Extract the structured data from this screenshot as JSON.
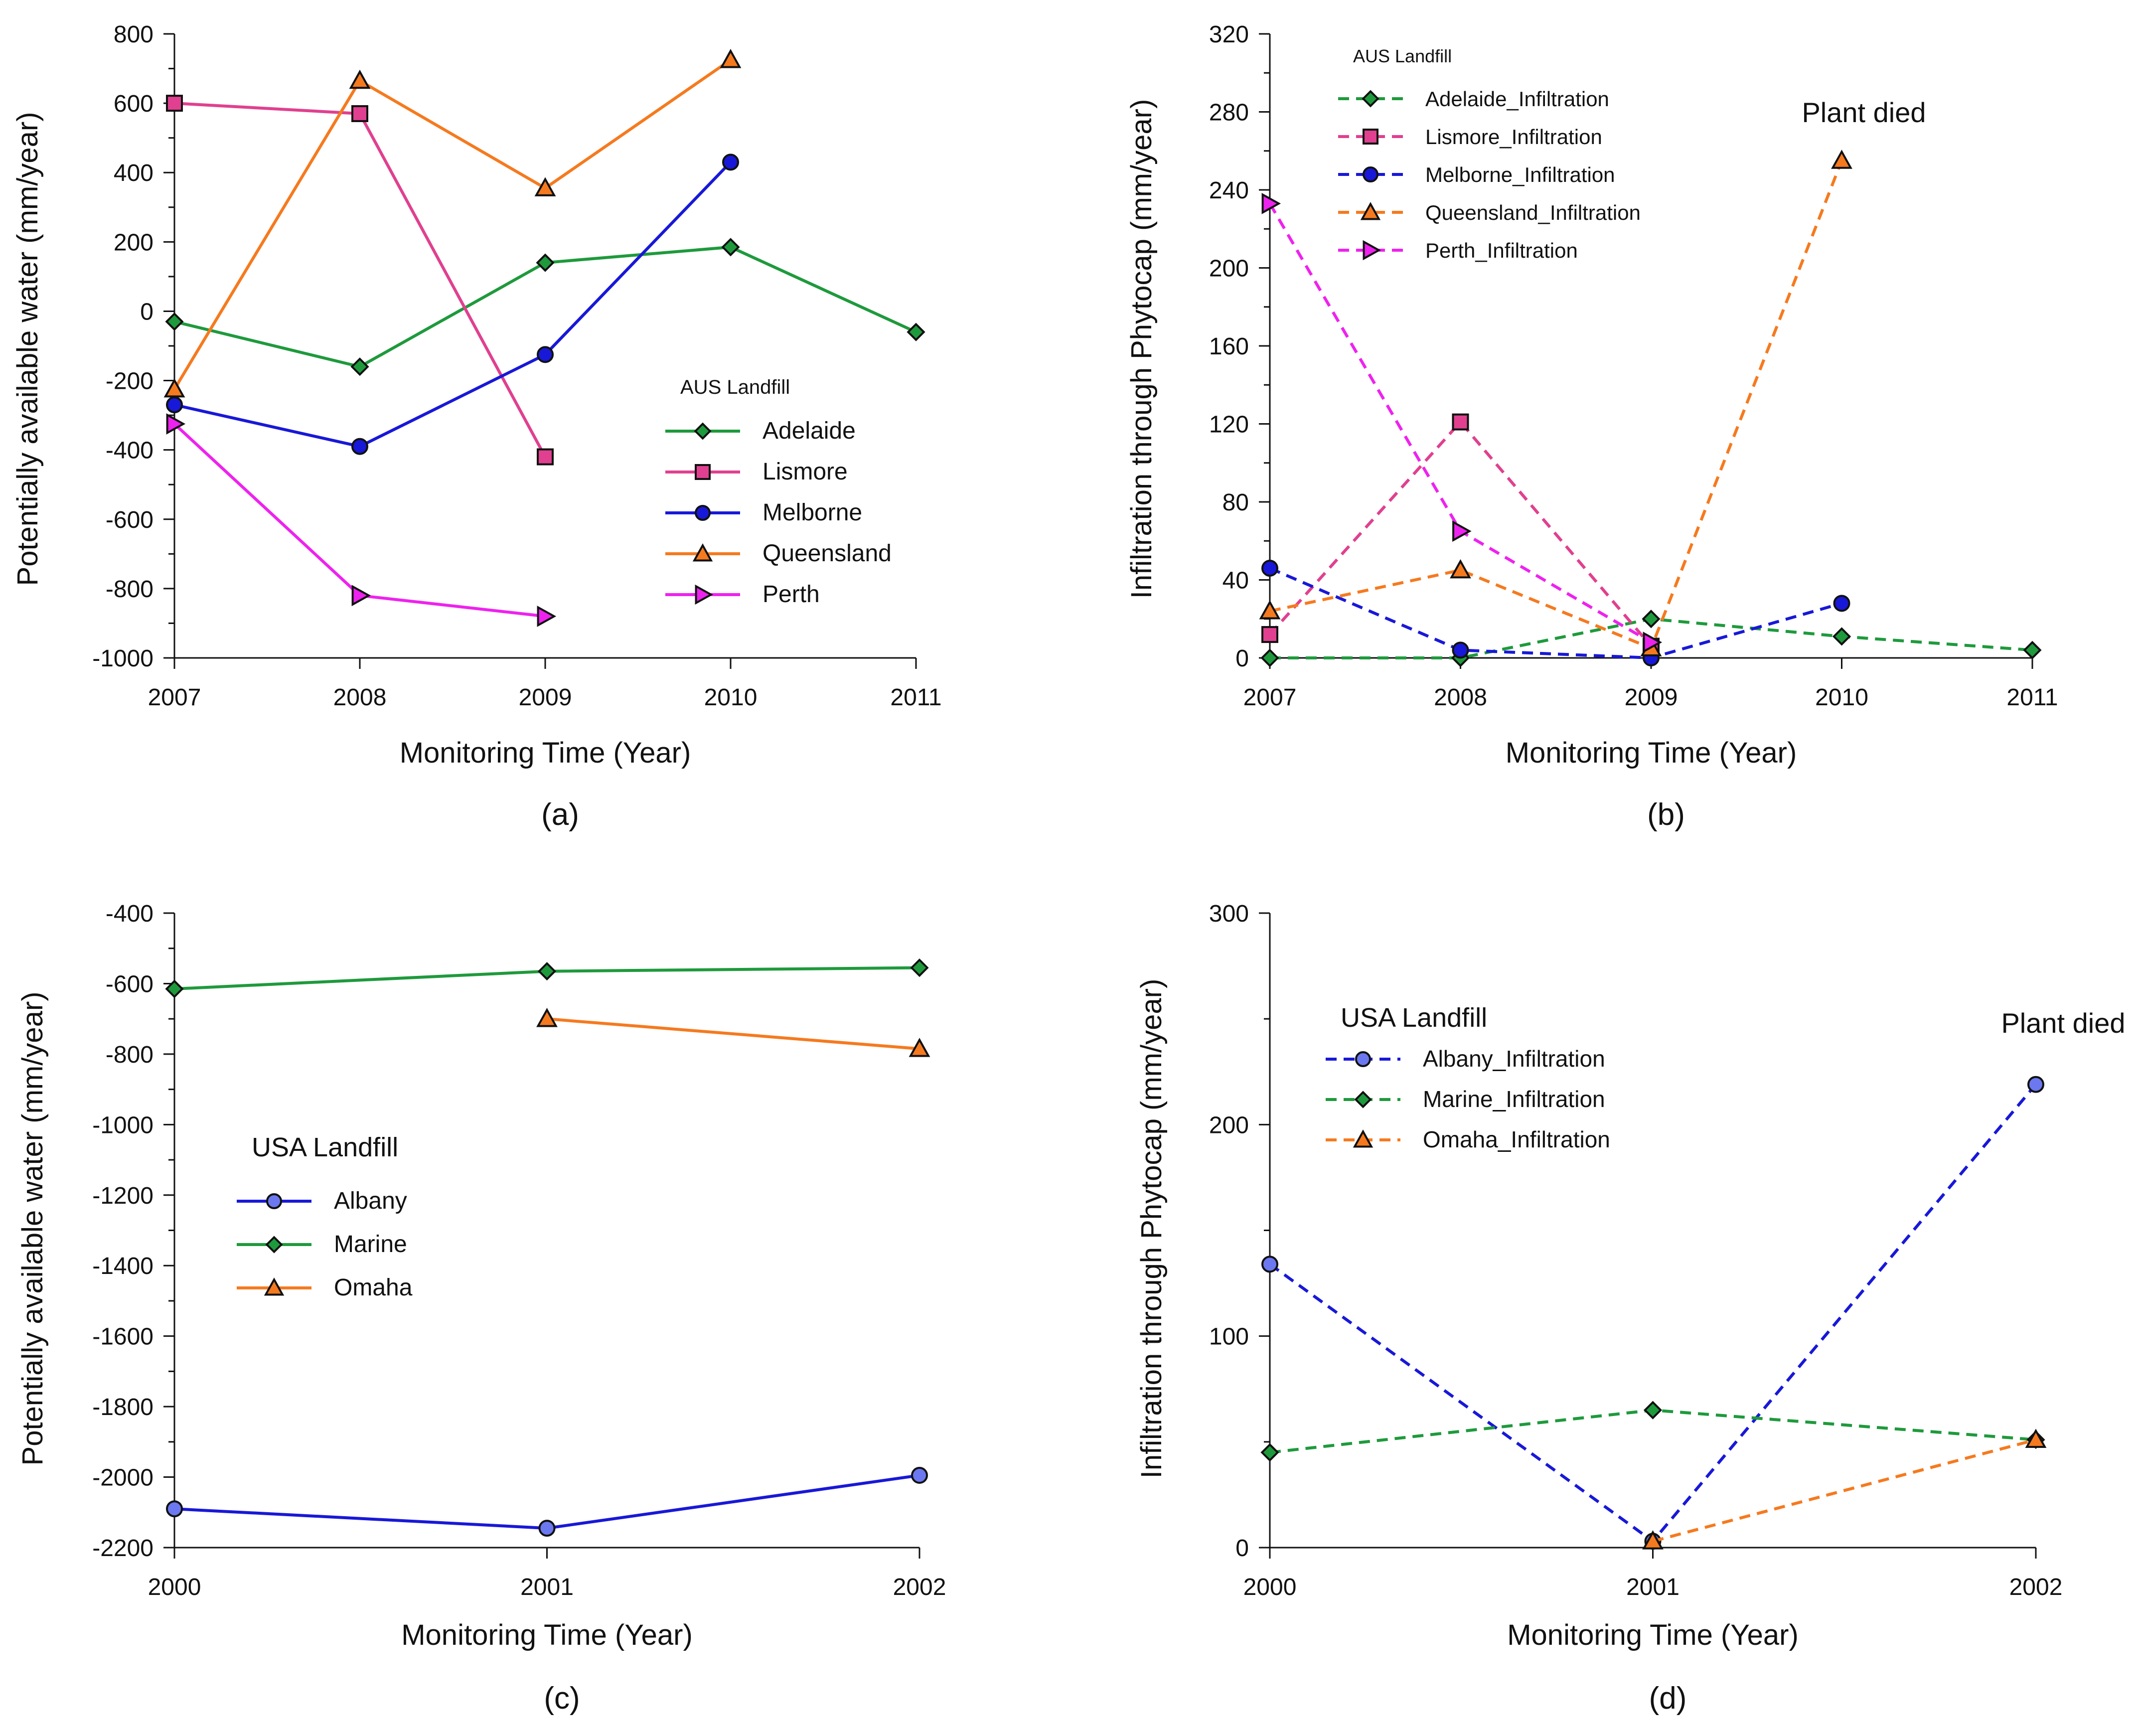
{
  "chart_data": [
    {
      "panel_label": "(a)",
      "type": "line",
      "line_style": "solid",
      "xlabel": "Monitoring Time (Year)",
      "ylabel": "Potentially available water (mm/year)",
      "xlim": [
        2007,
        2011
      ],
      "ylim": [
        -1000,
        800
      ],
      "xticks": [
        "2007",
        "2008",
        "2009",
        "2010",
        "2011"
      ],
      "yticks": [
        "800",
        "600",
        "400",
        "200",
        "0",
        "-200",
        "-400",
        "-600",
        "-800",
        "-1000"
      ],
      "legend_title": "AUS Landfill",
      "legend_position": "center-right",
      "series": [
        {
          "name": "Adelaide",
          "color": "#1e9a3c",
          "marker": "diamond",
          "x": [
            2007,
            2008,
            2009,
            2010,
            2011
          ],
          "y": [
            -30,
            -160,
            140,
            185,
            -60
          ]
        },
        {
          "name": "Lismore",
          "color": "#e0408f",
          "marker": "square",
          "x": [
            2007,
            2008,
            2009
          ],
          "y": [
            600,
            570,
            -420
          ]
        },
        {
          "name": "Melborne",
          "color": "#1818d8",
          "marker": "circle",
          "x": [
            2007,
            2008,
            2009,
            2010
          ],
          "y": [
            -270,
            -390,
            -125,
            430
          ]
        },
        {
          "name": "Queensland",
          "color": "#f57a1f",
          "marker": "triangle",
          "x": [
            2007,
            2008,
            2009,
            2010
          ],
          "y": [
            -225,
            665,
            355,
            725
          ]
        },
        {
          "name": "Perth",
          "color": "#ee22ee",
          "marker": "triangle-right",
          "x": [
            2007,
            2008,
            2009
          ],
          "y": [
            -325,
            -820,
            -880
          ]
        }
      ]
    },
    {
      "panel_label": "(b)",
      "type": "line",
      "line_style": "dashed",
      "xlabel": "Monitoring Time (Year)",
      "ylabel": "Infiltration through Phytocap (mm/year)",
      "xlim": [
        2007,
        2011
      ],
      "ylim": [
        0,
        320
      ],
      "xticks": [
        "2007",
        "2008",
        "2009",
        "2010",
        "2011"
      ],
      "yticks": [
        "320",
        "280",
        "240",
        "200",
        "160",
        "120",
        "80",
        "40",
        "0"
      ],
      "legend_title": "AUS Landfill",
      "legend_position": "top-left",
      "annotation": "Plant died",
      "series": [
        {
          "name": "Adelaide_Infiltration",
          "color": "#1e9a3c",
          "marker": "diamond",
          "x": [
            2007,
            2008,
            2009,
            2010,
            2011
          ],
          "y": [
            0,
            0,
            20,
            11,
            4
          ]
        },
        {
          "name": "Lismore_Infiltration",
          "color": "#e0408f",
          "marker": "square",
          "x": [
            2007,
            2008,
            2009
          ],
          "y": [
            12,
            121,
            6
          ]
        },
        {
          "name": "Melborne_Infiltration",
          "color": "#1818d8",
          "marker": "circle",
          "x": [
            2007,
            2008,
            2009,
            2010
          ],
          "y": [
            46,
            4,
            0,
            28
          ]
        },
        {
          "name": "Queensland_Infiltration",
          "color": "#f57a1f",
          "marker": "triangle",
          "x": [
            2007,
            2008,
            2009,
            2010
          ],
          "y": [
            24,
            45,
            5,
            255
          ]
        },
        {
          "name": "Perth_Infiltration",
          "color": "#ee22ee",
          "marker": "triangle-right",
          "x": [
            2007,
            2008,
            2009
          ],
          "y": [
            233,
            65,
            8
          ]
        }
      ]
    },
    {
      "panel_label": "(c)",
      "type": "line",
      "line_style": "solid",
      "xlabel": "Monitoring Time (Year)",
      "ylabel": "Potentially available water (mm/year)",
      "xlim": [
        2000,
        2002
      ],
      "ylim": [
        -2200,
        -400
      ],
      "xticks": [
        "2000",
        "2001",
        "2002"
      ],
      "yticks": [
        "-400",
        "-600",
        "-800",
        "-1000",
        "-1200",
        "-1400",
        "-1600",
        "-1800",
        "-2000",
        "-2200"
      ],
      "legend_title": "USA Landfill",
      "legend_position": "center-left",
      "series": [
        {
          "name": "Albany",
          "color": "#1818d8",
          "marker_fill": "#6b78f0",
          "marker": "circle",
          "x": [
            2000,
            2001,
            2002
          ],
          "y": [
            -2090,
            -2145,
            -1995
          ]
        },
        {
          "name": "Marine",
          "color": "#1e9a3c",
          "marker": "diamond",
          "x": [
            2000,
            2001,
            2002
          ],
          "y": [
            -615,
            -565,
            -555
          ]
        },
        {
          "name": "Omaha",
          "color": "#f57a1f",
          "marker": "triangle",
          "x": [
            2001,
            2002
          ],
          "y": [
            -700,
            -785
          ]
        }
      ]
    },
    {
      "panel_label": "(d)",
      "type": "line",
      "line_style": "dashed",
      "xlabel": "Monitoring Time (Year)",
      "ylabel": "Infiltration through Phytocap (mm/year)",
      "xlim": [
        2000,
        2002
      ],
      "ylim": [
        0,
        300
      ],
      "xticks": [
        "2000",
        "2001",
        "2002"
      ],
      "yticks": [
        "300",
        "200",
        "100",
        "0"
      ],
      "legend_title": "USA Landfill",
      "legend_position": "top-left",
      "annotation": "Plant died",
      "series": [
        {
          "name": "Albany_Infiltration",
          "color": "#1818d8",
          "marker_fill": "#6b78f0",
          "marker": "circle",
          "x": [
            2000,
            2001,
            2002
          ],
          "y": [
            134,
            3,
            219
          ]
        },
        {
          "name": "Marine_Infiltration",
          "color": "#1e9a3c",
          "marker": "diamond",
          "x": [
            2000,
            2001,
            2002
          ],
          "y": [
            45,
            65,
            51
          ]
        },
        {
          "name": "Omaha_Infiltration",
          "color": "#f57a1f",
          "marker": "triangle",
          "x": [
            2001,
            2002
          ],
          "y": [
            3,
            51
          ]
        }
      ]
    }
  ]
}
